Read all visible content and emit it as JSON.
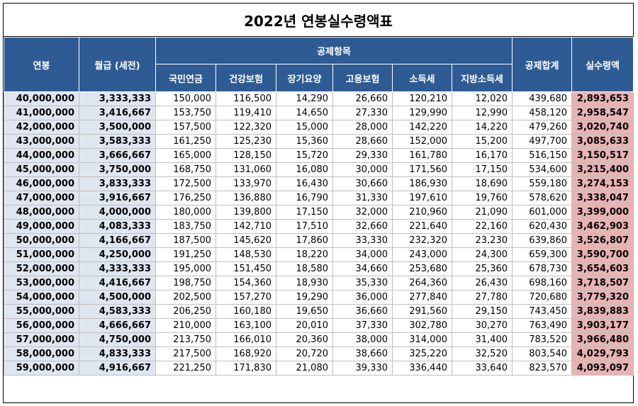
{
  "title": "2022년 연봉실수령액표",
  "headers": {
    "salary": "연봉",
    "monthly": "월급 (세전)",
    "deductions_group": "공제항목",
    "deductions": [
      "국민연금",
      "건강보험",
      "장기요양",
      "고용보험",
      "소득세",
      "지방소득세"
    ],
    "total": "공제합계",
    "net": "실수령액"
  },
  "rows": [
    [
      "40,000,000",
      "3,333,333",
      "150,000",
      "116,500",
      "14,290",
      "26,660",
      "120,210",
      "12,020",
      "439,680",
      "2,893,653"
    ],
    [
      "41,000,000",
      "3,416,667",
      "153,750",
      "119,410",
      "14,650",
      "27,330",
      "129,990",
      "12,990",
      "458,120",
      "2,958,547"
    ],
    [
      "42,000,000",
      "3,500,000",
      "157,500",
      "122,320",
      "15,000",
      "28,000",
      "142,220",
      "14,220",
      "479,260",
      "3,020,740"
    ],
    [
      "43,000,000",
      "3,583,333",
      "161,250",
      "125,230",
      "15,360",
      "28,660",
      "152,000",
      "15,200",
      "497,700",
      "3,085,633"
    ],
    [
      "44,000,000",
      "3,666,667",
      "165,000",
      "128,150",
      "15,720",
      "29,330",
      "161,780",
      "16,170",
      "516,150",
      "3,150,517"
    ],
    [
      "45,000,000",
      "3,750,000",
      "168,750",
      "131,060",
      "16,080",
      "30,000",
      "171,560",
      "17,150",
      "534,600",
      "3,215,400"
    ],
    [
      "46,000,000",
      "3,833,333",
      "172,500",
      "133,970",
      "16,430",
      "30,660",
      "186,930",
      "18,690",
      "559,180",
      "3,274,153"
    ],
    [
      "47,000,000",
      "3,916,667",
      "176,250",
      "136,880",
      "16,790",
      "31,330",
      "197,610",
      "19,760",
      "578,620",
      "3,338,047"
    ],
    [
      "48,000,000",
      "4,000,000",
      "180,000",
      "139,800",
      "17,150",
      "32,000",
      "210,960",
      "21,090",
      "601,000",
      "3,399,000"
    ],
    [
      "49,000,000",
      "4,083,333",
      "183,750",
      "142,710",
      "17,510",
      "32,660",
      "221,640",
      "22,160",
      "620,430",
      "3,462,903"
    ],
    [
      "50,000,000",
      "4,166,667",
      "187,500",
      "145,620",
      "17,860",
      "33,330",
      "232,320",
      "23,230",
      "639,860",
      "3,526,807"
    ],
    [
      "51,000,000",
      "4,250,000",
      "191,250",
      "148,530",
      "18,220",
      "34,000",
      "243,000",
      "24,300",
      "659,300",
      "3,590,700"
    ],
    [
      "52,000,000",
      "4,333,333",
      "195,000",
      "151,450",
      "18,580",
      "34,660",
      "253,680",
      "25,360",
      "678,730",
      "3,654,603"
    ],
    [
      "53,000,000",
      "4,416,667",
      "198,750",
      "154,360",
      "18,930",
      "35,330",
      "264,360",
      "26,430",
      "698,160",
      "3,718,507"
    ],
    [
      "54,000,000",
      "4,500,000",
      "202,500",
      "157,270",
      "19,290",
      "36,000",
      "277,840",
      "27,780",
      "720,680",
      "3,779,320"
    ],
    [
      "55,000,000",
      "4,583,333",
      "206,250",
      "160,180",
      "19,650",
      "36,660",
      "291,560",
      "29,150",
      "743,450",
      "3,839,883"
    ],
    [
      "56,000,000",
      "4,666,667",
      "210,000",
      "163,100",
      "20,010",
      "37,330",
      "302,780",
      "30,270",
      "763,490",
      "3,903,177"
    ],
    [
      "57,000,000",
      "4,750,000",
      "213,750",
      "166,010",
      "20,360",
      "38,000",
      "314,000",
      "31,400",
      "783,520",
      "3,966,480"
    ],
    [
      "58,000,000",
      "4,833,333",
      "217,500",
      "168,920",
      "20,720",
      "38,660",
      "325,220",
      "32,520",
      "803,540",
      "4,029,793"
    ],
    [
      "59,000,000",
      "4,916,667",
      "221,250",
      "171,830",
      "21,080",
      "39,330",
      "336,440",
      "33,640",
      "823,570",
      "4,093,097"
    ]
  ]
}
